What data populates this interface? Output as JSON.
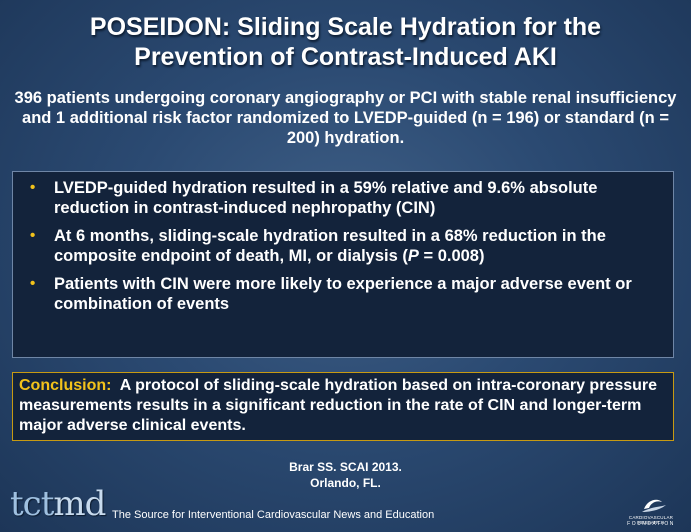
{
  "slide": {
    "title_line1": "POSEIDON: Sliding Scale Hydration for the",
    "title_line2": "Prevention of Contrast-Induced AKI",
    "subtitle": "396 patients undergoing coronary angiography or PCI with stable renal insufficiency and 1 additional risk factor randomized to LVEDP-guided (n = 196) or standard (n = 200) hydration.",
    "bullet_symbol": "•",
    "bullets": [
      "LVEDP-guided hydration resulted in a 59% relative and 9.6% absolute reduction in contrast-induced nephropathy (CIN)",
      "At 6 months, sliding-scale hydration resulted in a 68% reduction in the composite endpoint of death, MI, or dialysis (",
      "Patients with CIN were more likely to experience a major adverse event or combination of events"
    ],
    "bullet2_p": "P",
    "bullet2_tail": " = 0.008)",
    "conclusion_label": "Conclusion:",
    "conclusion_text": "A protocol of sliding-scale hydration based on intra-coronary pressure measurements results in a significant reduction in the rate of CIN and longer-term major adverse clinical events.",
    "citation_line1": "Brar SS. SCAI 2013.",
    "citation_line2": "Orlando, FL."
  },
  "footer": {
    "logo_tct": "tct",
    "logo_md": "md",
    "tagline": "The Source for Interventional Cardiovascular News and Education",
    "crf_line": "CARDIOVASCULAR RESEARCH",
    "crf_foundation": "FOUNDATION"
  },
  "colors": {
    "accent_yellow": "#f2c21b",
    "box_bg": "#13233b",
    "background": "#2b4a72"
  }
}
